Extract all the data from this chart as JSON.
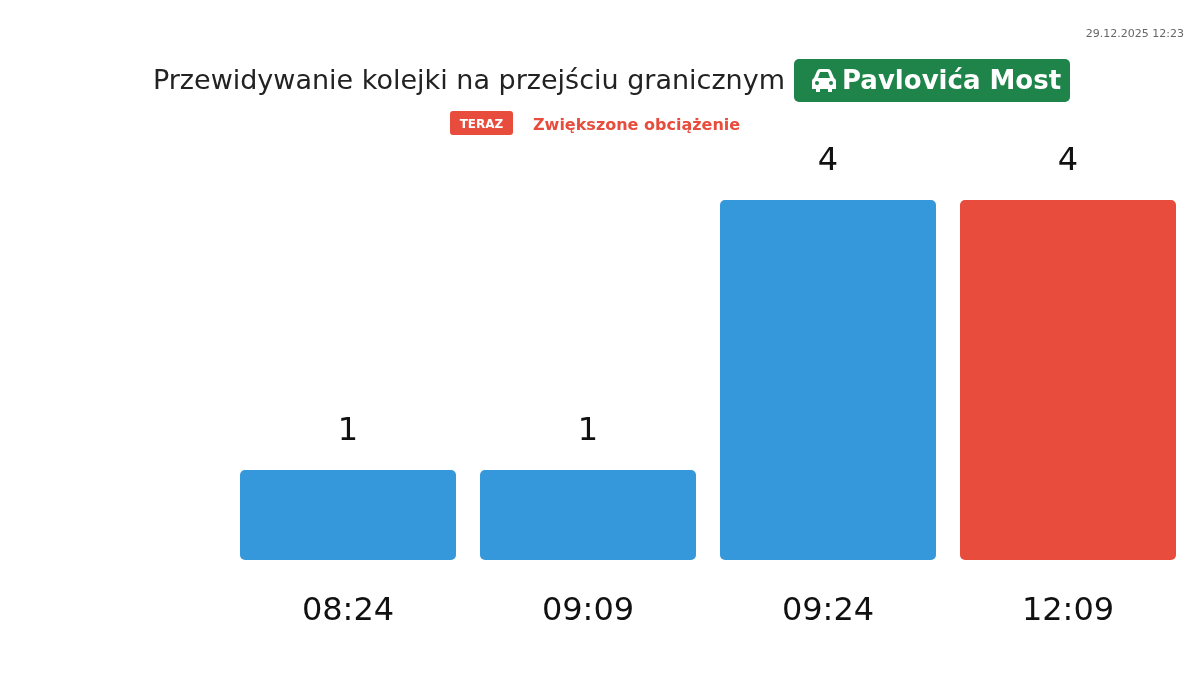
{
  "chart_data": {
    "type": "bar",
    "title": "Przewidywanie kolejki na przejściu granicznym",
    "subtitle": "Pavlovića Most",
    "categories": [
      "08:24",
      "09:09",
      "09:24",
      "12:09"
    ],
    "values": [
      1,
      1,
      4,
      4
    ],
    "colors": [
      "#3498db",
      "#3498db",
      "#3498db",
      "#e74c3c"
    ],
    "data_labels": true,
    "annotations": [
      "TERAZ",
      "Zwiększone obciążenie",
      "29.12.2025 12:23"
    ]
  }
}
